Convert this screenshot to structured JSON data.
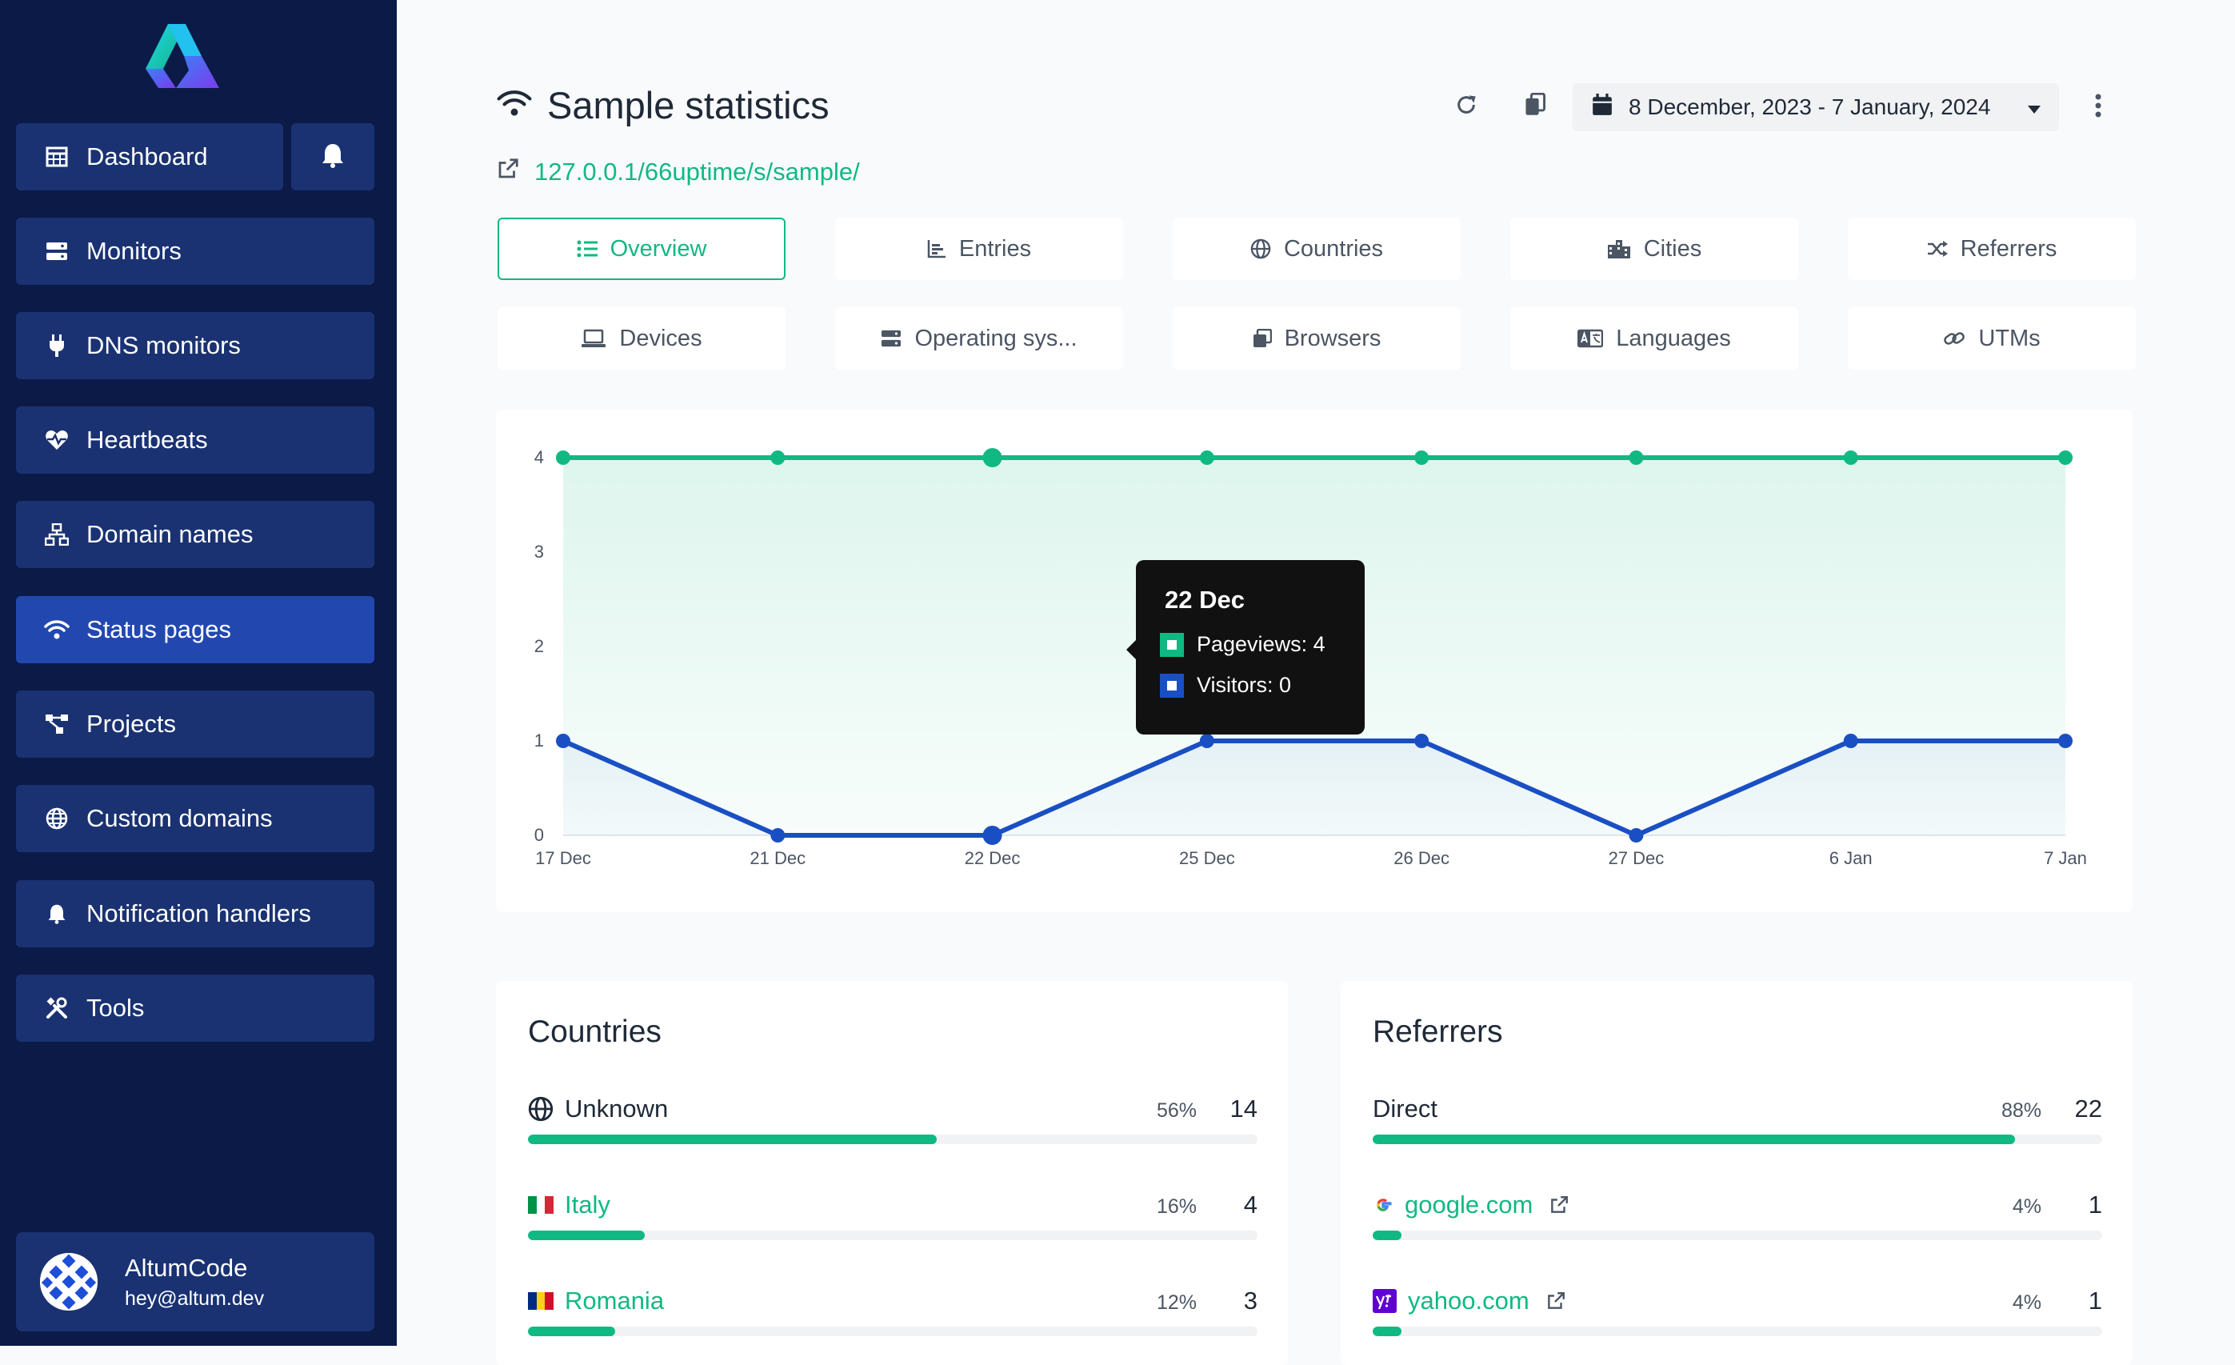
{
  "sidebar": {
    "items": [
      {
        "label": "Dashboard",
        "icon": "table-icon"
      },
      {
        "label": "Monitors",
        "icon": "server-icon"
      },
      {
        "label": "DNS monitors",
        "icon": "plug-icon"
      },
      {
        "label": "Heartbeats",
        "icon": "heart-pulse-icon"
      },
      {
        "label": "Domain names",
        "icon": "network-icon"
      },
      {
        "label": "Status pages",
        "icon": "wifi-icon",
        "active": true
      },
      {
        "label": "Projects",
        "icon": "project-diagram-icon"
      },
      {
        "label": "Custom domains",
        "icon": "globe-icon"
      },
      {
        "label": "Notification handlers",
        "icon": "bell-icon"
      },
      {
        "label": "Tools",
        "icon": "tools-icon"
      }
    ],
    "user": {
      "name": "AltumCode",
      "email": "hey@altum.dev"
    }
  },
  "header": {
    "title": "Sample statistics",
    "url": "127.0.0.1/66uptime/s/sample/",
    "date_range": "8 December, 2023 - 7 January, 2024"
  },
  "tabs": [
    {
      "label": "Overview",
      "icon": "list-icon",
      "active": true
    },
    {
      "label": "Entries",
      "icon": "chart-bar-icon"
    },
    {
      "label": "Countries",
      "icon": "globe-icon"
    },
    {
      "label": "Cities",
      "icon": "city-icon"
    },
    {
      "label": "Referrers",
      "icon": "random-icon"
    },
    {
      "label": "Devices",
      "icon": "laptop-icon"
    },
    {
      "label": "Operating sys...",
      "icon": "server-icon"
    },
    {
      "label": "Browsers",
      "icon": "window-icon"
    },
    {
      "label": "Languages",
      "icon": "language-icon"
    },
    {
      "label": "UTMs",
      "icon": "link-icon"
    }
  ],
  "chart_data": {
    "type": "line",
    "x": [
      "17 Dec",
      "21 Dec",
      "22 Dec",
      "25 Dec",
      "26 Dec",
      "27 Dec",
      "6 Jan",
      "7 Jan"
    ],
    "series": [
      {
        "name": "Pageviews",
        "values": [
          4,
          4,
          4,
          4,
          4,
          4,
          4,
          4
        ],
        "color": "#10b981"
      },
      {
        "name": "Visitors",
        "values": [
          1,
          0,
          0,
          1,
          1,
          0,
          1,
          1
        ],
        "color": "#1a4fc4"
      }
    ],
    "ylim": [
      0,
      4
    ],
    "yticks": [
      "0",
      "1",
      "2",
      "3",
      "4"
    ],
    "tooltip": {
      "title": "22 Dec",
      "rows": [
        "Pageviews: 4",
        "Visitors: 0"
      ]
    }
  },
  "countries": {
    "title": "Countries",
    "rows": [
      {
        "name": "Unknown",
        "pct": "56%",
        "count": "14",
        "fill": 0.56,
        "icon": "globe-icon",
        "link": false
      },
      {
        "name": "Italy",
        "pct": "16%",
        "count": "4",
        "fill": 0.16,
        "icon": "flag-it-icon",
        "link": true
      },
      {
        "name": "Romania",
        "pct": "12%",
        "count": "3",
        "fill": 0.12,
        "icon": "flag-ro-icon",
        "link": true
      }
    ]
  },
  "referrers": {
    "title": "Referrers",
    "rows": [
      {
        "name": "Direct",
        "pct": "88%",
        "count": "22",
        "fill": 0.88,
        "link": false
      },
      {
        "name": "google.com",
        "pct": "4%",
        "count": "1",
        "fill": 0.04,
        "icon": "google-icon",
        "link": true
      },
      {
        "name": "yahoo.com",
        "pct": "4%",
        "count": "1",
        "fill": 0.04,
        "icon": "yahoo-icon",
        "link": true
      }
    ]
  },
  "colors": {
    "accent": "#10b981",
    "sidebar": "#0c1a47",
    "nav": "#1a3272",
    "nav_active": "#2248b0",
    "visitors": "#1a4fc4"
  }
}
